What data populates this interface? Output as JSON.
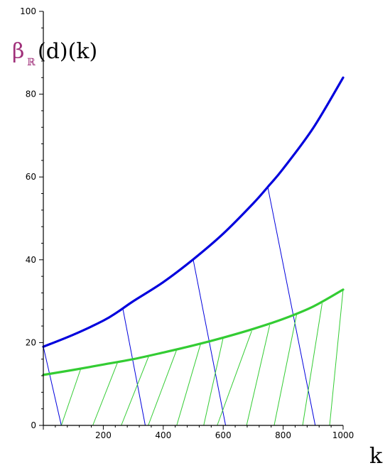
{
  "chart_data": {
    "type": "line",
    "title": "",
    "xlabel": "k",
    "ylabel": {
      "beta": "β",
      "subscript": "ℝ",
      "rest": "(d)(k)"
    },
    "xlim": [
      0,
      1000
    ],
    "ylim": [
      0,
      100
    ],
    "x_ticks": [
      200,
      400,
      600,
      800,
      1000
    ],
    "x_tick_labels": [
      "200",
      "400",
      "600",
      "800",
      "1000"
    ],
    "y_ticks": [
      0,
      20,
      40,
      60,
      80,
      100
    ],
    "y_tick_labels": [
      "0",
      "20",
      "40",
      "60",
      "80",
      "100"
    ],
    "grid": false,
    "legend": "none",
    "colors": {
      "blue": "#0000dd",
      "green": "#33cc33",
      "label_magenta": "#a0307a",
      "axis": "#000000"
    },
    "series": [
      {
        "color": "blue",
        "style": "curve",
        "x": [
          0,
          100,
          200,
          250,
          300,
          400,
          500,
          600,
          700,
          750,
          800,
          900,
          1000
        ],
        "y": [
          19,
          21.9,
          25.3,
          27.5,
          30.0,
          34.6,
          40.1,
          46.3,
          53.6,
          57.7,
          62.0,
          71.8,
          84.0
        ]
      },
      {
        "color": "green",
        "style": "curve",
        "x": [
          0,
          100,
          200,
          300,
          400,
          500,
          600,
          700,
          800,
          900,
          1000
        ],
        "y": [
          12.2,
          13.4,
          14.7,
          16.0,
          17.6,
          19.3,
          21.2,
          23.3,
          25.7,
          28.7,
          32.8
        ]
      }
    ],
    "segments": [
      {
        "color": "blue",
        "x": [
          0,
          60
        ],
        "y": [
          19,
          0
        ]
      },
      {
        "color": "blue",
        "x": [
          265,
          340
        ],
        "y": [
          28.3,
          0
        ]
      },
      {
        "color": "blue",
        "x": [
          500,
          608
        ],
        "y": [
          40,
          0
        ]
      },
      {
        "color": "blue",
        "x": [
          748,
          907
        ],
        "y": [
          57.8,
          0
        ]
      },
      {
        "color": "green",
        "x": [
          60,
          125
        ],
        "y": [
          0,
          13.7
        ]
      },
      {
        "color": "green",
        "x": [
          165,
          248
        ],
        "y": [
          0,
          15.3
        ]
      },
      {
        "color": "green",
        "x": [
          260,
          352
        ],
        "y": [
          0,
          16.8
        ]
      },
      {
        "color": "green",
        "x": [
          350,
          445
        ],
        "y": [
          0,
          18.3
        ]
      },
      {
        "color": "green",
        "x": [
          445,
          525
        ],
        "y": [
          0,
          19.8
        ]
      },
      {
        "color": "green",
        "x": [
          535,
          600
        ],
        "y": [
          0,
          21.2
        ]
      },
      {
        "color": "green",
        "x": [
          580,
          695
        ],
        "y": [
          0,
          22.8
        ]
      },
      {
        "color": "green",
        "x": [
          678,
          755
        ],
        "y": [
          0,
          24.2
        ]
      },
      {
        "color": "green",
        "x": [
          770,
          845
        ],
        "y": [
          0,
          26.8
        ]
      },
      {
        "color": "green",
        "x": [
          865,
          930
        ],
        "y": [
          0,
          29.5
        ]
      },
      {
        "color": "green",
        "x": [
          955,
          1000
        ],
        "y": [
          0,
          32.8
        ]
      }
    ]
  }
}
